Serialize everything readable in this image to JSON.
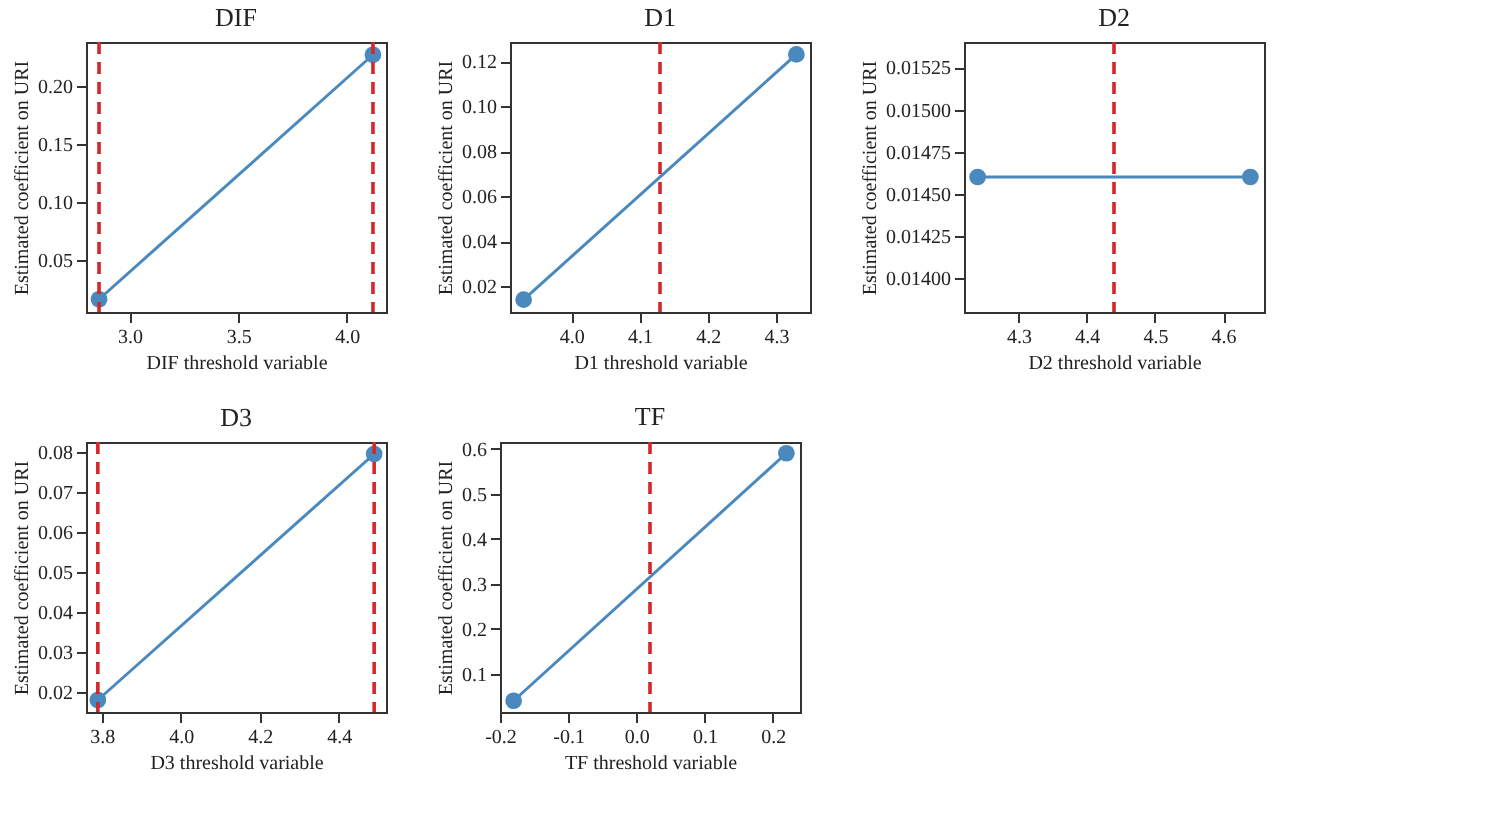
{
  "chart_data": [
    {
      "type": "line",
      "title": "DIF",
      "xlabel": "DIF threshold variable",
      "ylabel": "Estimated coefficient on URI",
      "marker": "circle",
      "x": [
        2.86,
        4.12
      ],
      "series": [
        {
          "color": "#4a89be",
          "values": [
            0.016,
            0.227
          ]
        }
      ],
      "xlim": [
        2.8,
        4.18
      ],
      "ylim": [
        0.005,
        0.238
      ],
      "xticks": [
        {
          "value": 3,
          "label": "3.0"
        },
        3.5,
        {
          "value": 4,
          "label": "4.0"
        }
      ],
      "yticks": [
        0.05,
        {
          "value": 0.1,
          "label": "0.10"
        },
        0.15,
        {
          "value": 0.2,
          "label": "0.20"
        }
      ],
      "ref_lines": [
        {
          "axis": "x",
          "value": 2.86,
          "color": "#d62728",
          "line_style": "dashed"
        },
        {
          "axis": "x",
          "value": 4.12,
          "color": "#d62728",
          "line_style": "dashed"
        }
      ]
    },
    {
      "type": "line",
      "title": "D1",
      "xlabel": "D1 threshold variable",
      "ylabel": "Estimated coefficient on URI",
      "marker": "circle",
      "x": [
        3.93,
        4.33
      ],
      "series": [
        {
          "color": "#4a89be",
          "values": [
            0.014,
            0.123
          ]
        }
      ],
      "xlim": [
        3.91,
        4.35
      ],
      "ylim": [
        0.0085,
        0.1285
      ],
      "xticks": [
        {
          "value": 4,
          "label": "4.0"
        },
        4.1,
        4.2,
        4.3
      ],
      "yticks": [
        0.02,
        0.04,
        0.06,
        0.08,
        {
          "value": 0.1,
          "label": "0.10"
        },
        0.12
      ],
      "ref_lines": [
        {
          "axis": "x",
          "value": 4.13,
          "color": "#d62728",
          "line_style": "dashed"
        }
      ]
    },
    {
      "type": "line",
      "title": "D2",
      "xlabel": "D2 threshold variable",
      "ylabel": "Estimated coefficient on URI",
      "marker": "circle",
      "x": [
        4.24,
        4.64
      ],
      "series": [
        {
          "color": "#4a89be",
          "values": [
            0.0146,
            0.0146
          ]
        }
      ],
      "xlim": [
        4.22,
        4.66
      ],
      "ylim": [
        0.0138,
        0.0154
      ],
      "xticks": [
        4.3,
        4.4,
        4.5,
        4.6
      ],
      "yticks": [
        {
          "value": 0.014,
          "label": "0.01400"
        },
        {
          "value": 0.01425,
          "label": "0.01425"
        },
        {
          "value": 0.0145,
          "label": "0.01450"
        },
        {
          "value": 0.01475,
          "label": "0.01475"
        },
        {
          "value": 0.015,
          "label": "0.01500"
        },
        {
          "value": 0.01525,
          "label": "0.01525"
        }
      ],
      "ref_lines": [
        {
          "axis": "x",
          "value": 4.44,
          "color": "#d62728",
          "line_style": "dashed"
        }
      ]
    },
    {
      "type": "line",
      "title": "D3",
      "xlabel": "D3 threshold variable",
      "ylabel": "Estimated coefficient on URI",
      "marker": "circle",
      "x": [
        3.79,
        4.49
      ],
      "series": [
        {
          "color": "#4a89be",
          "values": [
            0.018,
            0.0795
          ]
        }
      ],
      "xlim": [
        3.76,
        4.52
      ],
      "ylim": [
        0.015,
        0.0825
      ],
      "xticks": [
        3.8,
        {
          "value": 4,
          "label": "4.0"
        },
        4.2,
        4.4
      ],
      "yticks": [
        0.02,
        0.03,
        0.04,
        0.05,
        0.06,
        0.07,
        0.08
      ],
      "ref_lines": [
        {
          "axis": "x",
          "value": 3.79,
          "color": "#d62728",
          "line_style": "dashed"
        },
        {
          "axis": "x",
          "value": 4.49,
          "color": "#d62728",
          "line_style": "dashed"
        }
      ]
    },
    {
      "type": "line",
      "title": "TF",
      "xlabel": "TF threshold variable",
      "ylabel": "Estimated coefficient on URI",
      "marker": "circle",
      "x": [
        -0.18,
        0.22
      ],
      "series": [
        {
          "color": "#4a89be",
          "values": [
            0.04,
            0.59
          ]
        }
      ],
      "xlim": [
        -0.2,
        0.24
      ],
      "ylim": [
        0.015,
        0.615
      ],
      "xticks": [
        -0.2,
        -0.1,
        {
          "value": 0,
          "label": "0.0"
        },
        0.1,
        0.2
      ],
      "yticks": [
        0.1,
        0.2,
        0.3,
        0.4,
        0.5,
        0.6
      ],
      "ref_lines": [
        {
          "axis": "x",
          "value": 0.02,
          "color": "#d62728",
          "line_style": "dashed"
        }
      ]
    }
  ]
}
